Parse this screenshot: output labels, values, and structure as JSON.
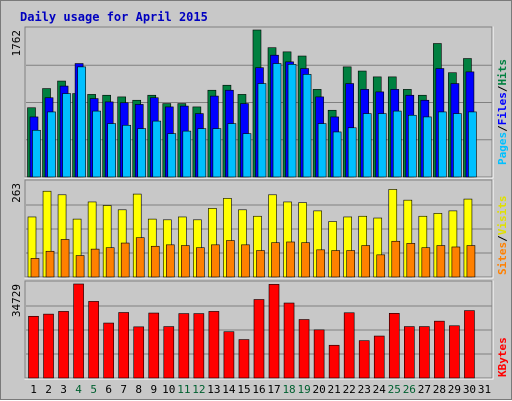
{
  "chart_data": {
    "type": "bar",
    "title": "Daily usage for April 2015",
    "x_days": [
      "1",
      "2",
      "3",
      "4",
      "5",
      "6",
      "7",
      "8",
      "9",
      "10",
      "11",
      "12",
      "13",
      "14",
      "15",
      "16",
      "17",
      "18",
      "19",
      "20",
      "21",
      "22",
      "23",
      "24",
      "25",
      "26",
      "27",
      "28",
      "29",
      "30",
      "31"
    ],
    "weekend_days": [
      "4",
      "5",
      "11",
      "12",
      "18",
      "19",
      "25",
      "26"
    ],
    "panels": [
      {
        "id": "hits",
        "ymax_label": "1762",
        "ymax": 1762,
        "series": [
          {
            "name": "Hits",
            "color": "#008040",
            "values": [
              830,
              1060,
              1150,
              1000,
              990,
              980,
              960,
              920,
              980,
              880,
              880,
              840,
              1040,
              1100,
              990,
              1762,
              1550,
              1500,
              1450,
              1050,
              800,
              1320,
              1270,
              1200,
              1200,
              1050,
              980,
              1600,
              1250,
              1420,
              null
            ]
          },
          {
            "name": "Files",
            "color": "#0000ff",
            "values": [
              720,
              950,
              1090,
              1360,
              940,
              900,
              890,
              870,
              950,
              840,
              850,
              760,
              970,
              1040,
              880,
              1310,
              1460,
              1380,
              1300,
              960,
              720,
              1120,
              1050,
              1020,
              1050,
              980,
              920,
              1300,
              1120,
              1260,
              null
            ]
          },
          {
            "name": "Pages",
            "color": "#00c0ff",
            "values": [
              560,
              780,
              1000,
              1320,
              790,
              640,
              620,
              580,
              670,
              520,
              550,
              580,
              580,
              640,
              520,
              1120,
              1360,
              1350,
              1230,
              640,
              540,
              590,
              760,
              760,
              790,
              740,
              720,
              780,
              760,
              780,
              null
            ]
          }
        ]
      },
      {
        "id": "visits",
        "ymax_label": "263",
        "ymax": 263,
        "series": [
          {
            "name": "Visits",
            "color": "#ffff00",
            "values": [
              168,
              240,
              230,
              162,
              210,
              200,
              188,
              232,
              162,
              160,
              168,
              160,
              192,
              220,
              188,
              170,
              230,
              210,
              208,
              185,
              155,
              168,
              170,
              165,
              245,
              215,
              170,
              178,
              185,
              218,
              null
            ]
          },
          {
            "name": "Sites",
            "color": "#ff8000",
            "values": [
              52,
              72,
              105,
              60,
              78,
              82,
              95,
              110,
              86,
              90,
              88,
              82,
              90,
              102,
              90,
              74,
              96,
              98,
              96,
              76,
              74,
              74,
              88,
              62,
              100,
              94,
              82,
              88,
              84,
              88,
              null
            ]
          }
        ]
      },
      {
        "id": "kbytes",
        "ymax_label": "34729",
        "ymax": 34729,
        "series": [
          {
            "name": "KBytes",
            "color": "#ff0000",
            "values": [
              22800,
              23600,
              24600,
              34729,
              28300,
              20300,
              24200,
              18900,
              24000,
              19000,
              23800,
              23800,
              24600,
              17100,
              14200,
              29000,
              34600,
              27700,
              21600,
              17800,
              12100,
              24100,
              13800,
              15500,
              23900,
              19000,
              19000,
              21000,
              19300,
              24900,
              null
            ]
          }
        ]
      }
    ],
    "right_labels": {
      "hits_pages": "Pages",
      "hits_files": "Files",
      "hits_hits": "Hits",
      "visits_sites": "Sites",
      "visits_visits": "Visits",
      "kbytes": "KBytes",
      "separator": "/"
    }
  }
}
